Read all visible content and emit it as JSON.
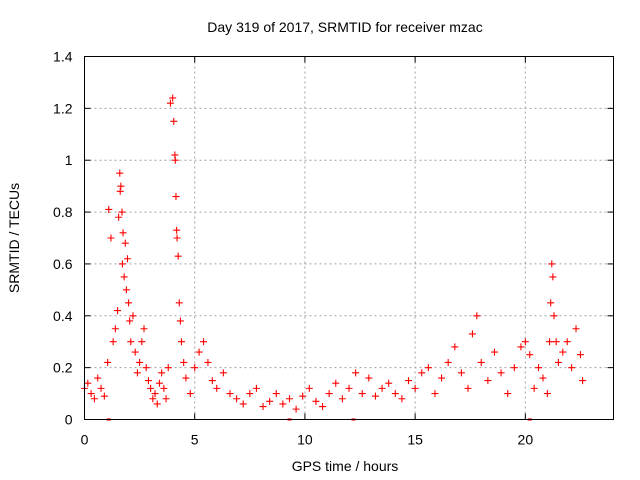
{
  "chart_data": {
    "type": "scatter",
    "title": "Day 319 of 2017, SRMTID for receiver mzac",
    "xlabel": "GPS time / hours",
    "ylabel": "SRMTID / TECUs",
    "xlim": [
      0,
      24
    ],
    "ylim": [
      0,
      1.4
    ],
    "xticks": [
      0,
      5,
      10,
      15,
      20
    ],
    "xtick_labels": [
      "0",
      "5",
      "10",
      "15",
      "20"
    ],
    "yticks": [
      0,
      0.2,
      0.4,
      0.6,
      0.8,
      1.0,
      1.2,
      1.4
    ],
    "ytick_labels": [
      "0",
      "0.2",
      "0.4",
      "0.6",
      "0.8",
      "1",
      "1.2",
      "1.4"
    ],
    "grid": true,
    "marker": "+",
    "color": "#ff0000",
    "series": [
      {
        "name": "mzac",
        "x": [
          0.0,
          0.15,
          0.3,
          0.45,
          0.6,
          0.75,
          0.9,
          1.05,
          1.1,
          1.2,
          1.3,
          1.4,
          1.5,
          1.55,
          1.6,
          1.62,
          1.65,
          1.7,
          1.72,
          1.75,
          1.8,
          1.85,
          1.9,
          1.95,
          2.0,
          2.05,
          2.1,
          2.2,
          2.3,
          2.4,
          2.5,
          2.6,
          2.7,
          2.8,
          2.9,
          3.0,
          3.1,
          3.2,
          3.3,
          3.4,
          3.5,
          3.6,
          3.7,
          3.8,
          3.9,
          4.0,
          4.05,
          4.1,
          4.12,
          4.15,
          4.18,
          4.2,
          4.25,
          4.3,
          4.35,
          4.4,
          4.5,
          4.6,
          4.8,
          5.0,
          5.2,
          5.4,
          5.6,
          5.8,
          6.0,
          6.3,
          6.6,
          6.9,
          7.2,
          7.5,
          7.8,
          8.1,
          8.4,
          8.7,
          9.0,
          9.3,
          9.6,
          9.9,
          10.2,
          10.5,
          10.8,
          11.1,
          11.4,
          11.7,
          12.0,
          12.3,
          12.6,
          12.9,
          13.2,
          13.5,
          13.8,
          14.1,
          14.4,
          14.7,
          15.0,
          15.3,
          15.6,
          15.9,
          16.2,
          16.5,
          16.8,
          17.1,
          17.4,
          17.6,
          17.8,
          18.0,
          18.3,
          18.6,
          18.9,
          19.2,
          19.5,
          19.8,
          20.0,
          20.2,
          20.4,
          20.6,
          20.8,
          21.0,
          21.1,
          21.15,
          21.2,
          21.25,
          21.3,
          21.4,
          21.5,
          21.7,
          21.9,
          22.1,
          22.3,
          22.5,
          22.6
        ],
        "y": [
          0.12,
          0.14,
          0.1,
          0.08,
          0.16,
          0.12,
          0.09,
          0.22,
          0.81,
          0.7,
          0.3,
          0.35,
          0.42,
          0.78,
          0.95,
          0.88,
          0.9,
          0.8,
          0.6,
          0.72,
          0.55,
          0.68,
          0.5,
          0.62,
          0.45,
          0.38,
          0.3,
          0.4,
          0.26,
          0.18,
          0.22,
          0.3,
          0.35,
          0.2,
          0.15,
          0.12,
          0.08,
          0.1,
          0.06,
          0.14,
          0.18,
          0.12,
          0.08,
          0.2,
          1.22,
          1.24,
          1.15,
          1.02,
          1.0,
          0.86,
          0.73,
          0.7,
          0.63,
          0.45,
          0.38,
          0.3,
          0.22,
          0.16,
          0.1,
          0.2,
          0.26,
          0.3,
          0.22,
          0.15,
          0.12,
          0.18,
          0.1,
          0.08,
          0.06,
          0.1,
          0.12,
          0.05,
          0.07,
          0.1,
          0.06,
          0.08,
          0.04,
          0.09,
          0.12,
          0.07,
          0.05,
          0.1,
          0.14,
          0.08,
          0.12,
          0.18,
          0.1,
          0.16,
          0.09,
          0.12,
          0.14,
          0.1,
          0.08,
          0.15,
          0.12,
          0.18,
          0.2,
          0.1,
          0.16,
          0.22,
          0.28,
          0.18,
          0.12,
          0.33,
          0.4,
          0.22,
          0.15,
          0.26,
          0.18,
          0.1,
          0.2,
          0.28,
          0.3,
          0.25,
          0.12,
          0.2,
          0.16,
          0.1,
          0.3,
          0.45,
          0.6,
          0.55,
          0.4,
          0.3,
          0.22,
          0.26,
          0.3,
          0.2,
          0.35,
          0.25,
          0.15
        ]
      }
    ]
  }
}
